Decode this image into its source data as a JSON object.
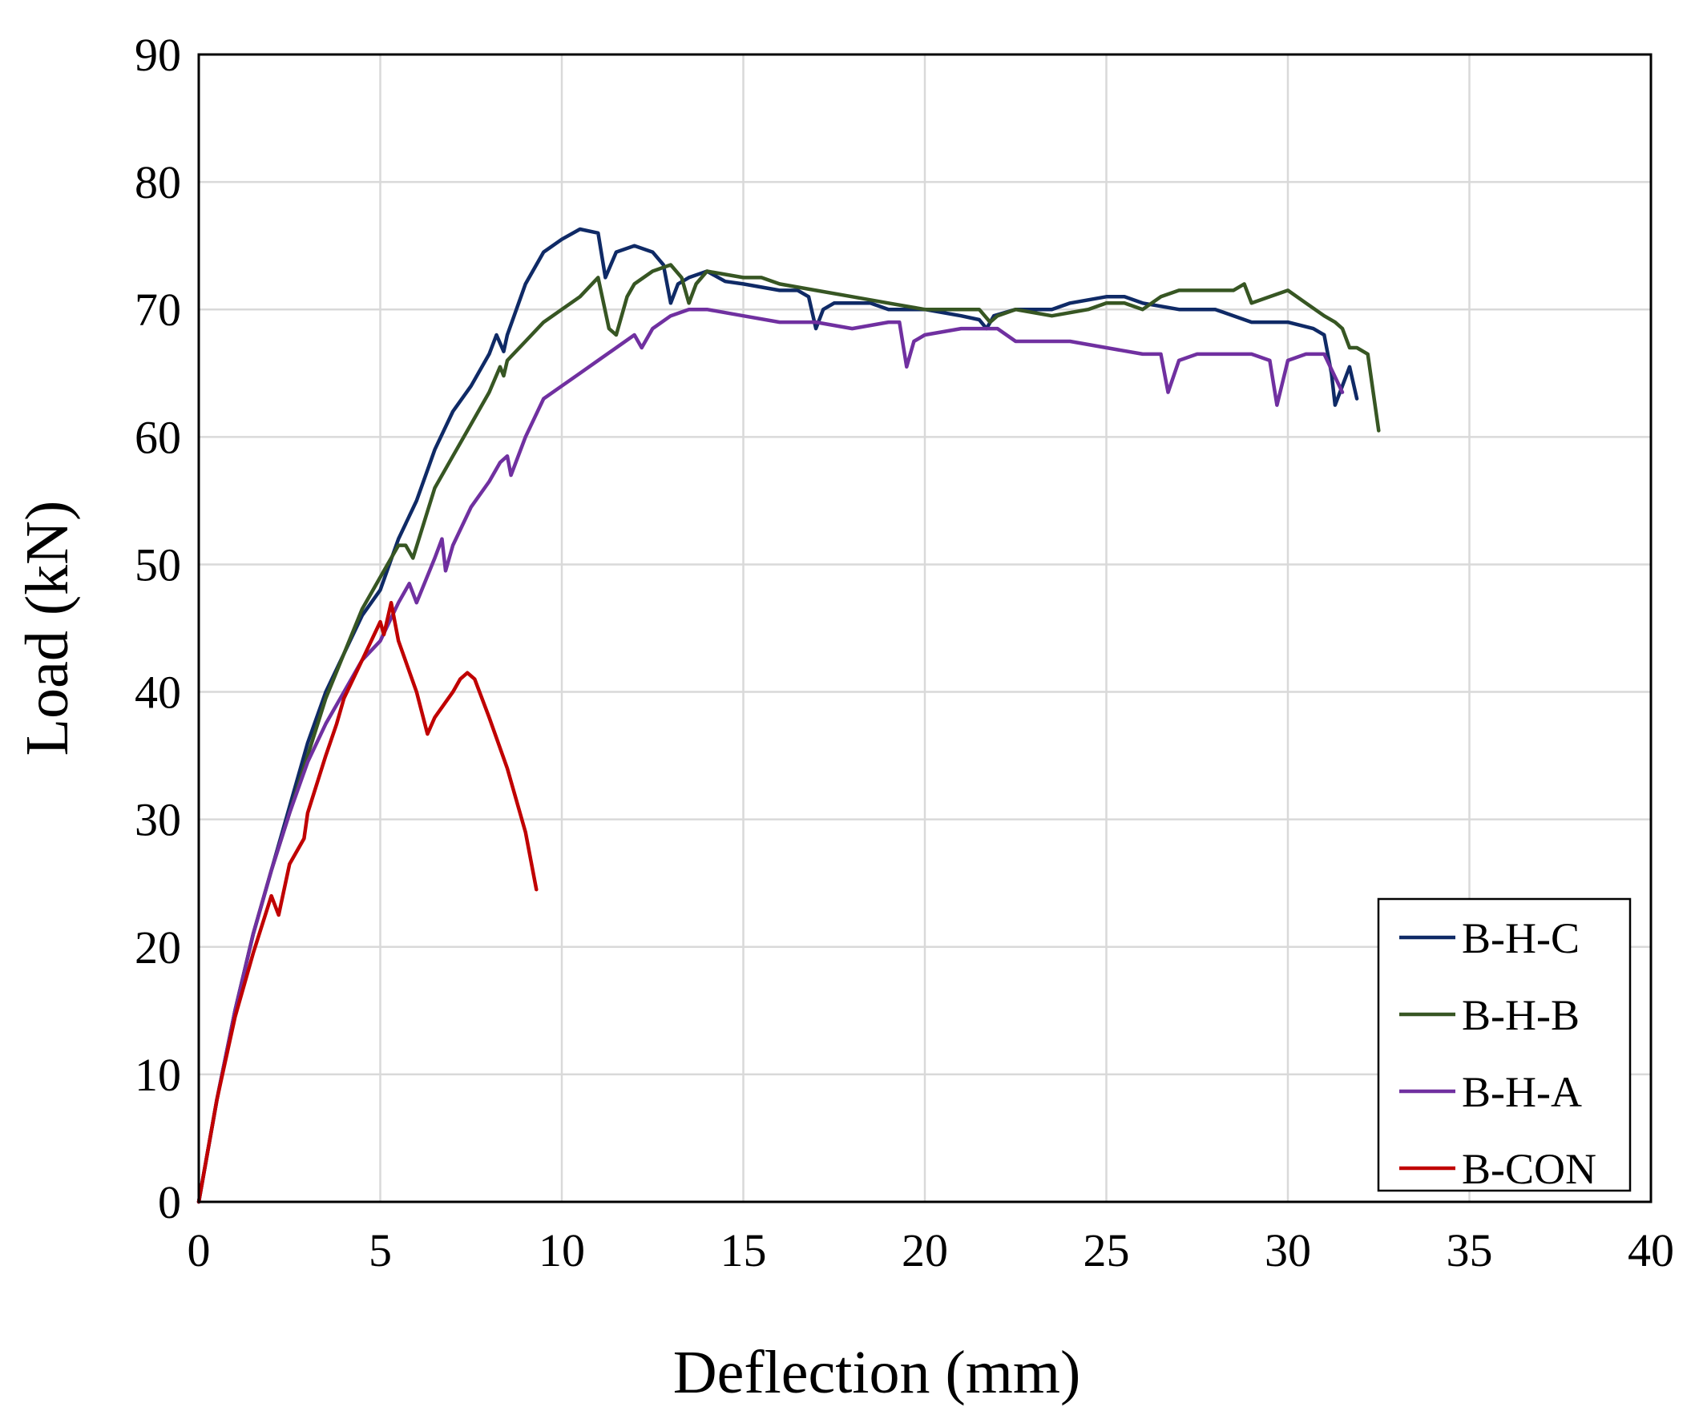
{
  "chart_data": {
    "type": "line",
    "title": "",
    "xlabel": "Deflection (mm)",
    "ylabel": "Load (kN)",
    "xlim": [
      0,
      40
    ],
    "ylim": [
      0,
      90
    ],
    "xticks": [
      0,
      5,
      10,
      15,
      20,
      25,
      30,
      35,
      40
    ],
    "yticks": [
      0,
      10,
      20,
      30,
      40,
      50,
      60,
      70,
      80,
      90
    ],
    "grid": true,
    "legend_position": "bottom-right",
    "series": [
      {
        "name": "B-H-C",
        "color": "#0f2a66",
        "x": [
          0,
          0.5,
          1,
          1.5,
          2,
          2.5,
          3,
          3.5,
          4,
          4.5,
          5,
          5.5,
          6,
          6.5,
          7,
          7.5,
          8,
          8.2,
          8.4,
          8.5,
          9,
          9.5,
          10,
          10.5,
          11,
          11.2,
          11.5,
          12,
          12.5,
          12.8,
          13,
          13.2,
          13.5,
          14,
          14.5,
          15,
          16,
          16.5,
          16.8,
          17,
          17.2,
          17.5,
          18,
          18.5,
          19,
          20,
          21,
          21.5,
          21.7,
          21.9,
          22.5,
          23.5,
          24,
          25,
          25.5,
          26,
          27,
          28,
          29,
          30,
          30.7,
          31,
          31.2,
          31.3,
          31.5,
          31.7,
          31.9
        ],
        "y": [
          0,
          8,
          15,
          21,
          26,
          31,
          36,
          40,
          43,
          46,
          48,
          52,
          55,
          59,
          62,
          64,
          66.5,
          68,
          66.7,
          68,
          72,
          74.5,
          75.5,
          76.3,
          76,
          72.5,
          74.5,
          75,
          74.5,
          73.5,
          70.5,
          72,
          72.5,
          73,
          72.2,
          72,
          71.5,
          71.5,
          71,
          68.5,
          70,
          70.5,
          70.5,
          70.5,
          70,
          70,
          69.5,
          69.2,
          68.5,
          69.5,
          70,
          70,
          70.5,
          71,
          71,
          70.5,
          70,
          70,
          69,
          69,
          68.5,
          68,
          65,
          62.5,
          64,
          65.5,
          63
        ]
      },
      {
        "name": "B-H-B",
        "color": "#375623",
        "x": [
          0,
          0.5,
          1,
          1.5,
          2,
          2.5,
          3,
          3.5,
          4,
          4.5,
          5,
          5.5,
          5.7,
          5.9,
          6.5,
          7,
          7.2,
          7.5,
          8,
          8.3,
          8.4,
          8.5,
          9,
          9.5,
          10,
          10.5,
          11,
          11.3,
          11.5,
          11.8,
          12,
          12.5,
          13,
          13.3,
          13.5,
          13.7,
          14,
          15,
          15.5,
          16,
          17,
          18,
          19,
          20,
          21,
          21.5,
          21.8,
          22,
          22.5,
          23.5,
          24.5,
          25,
          25.5,
          26,
          26.5,
          27,
          28,
          28.5,
          28.8,
          29,
          29.5,
          30,
          30.5,
          31,
          31.3,
          31.5,
          31.7,
          31.9,
          32.2,
          32.5
        ],
        "y": [
          0,
          8,
          15,
          21,
          26,
          30.5,
          35,
          39.5,
          43,
          46.5,
          49,
          51.5,
          51.5,
          50.5,
          56,
          58.5,
          59.5,
          61,
          63.5,
          65.5,
          64.8,
          66,
          67.5,
          69,
          70,
          71,
          72.5,
          68.5,
          68,
          71,
          72,
          73,
          73.5,
          72.5,
          70.5,
          72,
          73,
          72.5,
          72.5,
          72,
          71.5,
          71,
          70.5,
          70,
          70,
          70,
          69,
          69.5,
          70,
          69.5,
          70,
          70.5,
          70.5,
          70,
          71,
          71.5,
          71.5,
          71.5,
          72,
          70.5,
          71,
          71.5,
          70.5,
          69.5,
          69,
          68.5,
          67,
          67,
          66.5,
          60.5
        ]
      },
      {
        "name": "B-H-A",
        "color": "#7030a0",
        "x": [
          0,
          0.5,
          1,
          1.5,
          2,
          2.5,
          3,
          3.5,
          4,
          4.5,
          5,
          5.5,
          5.8,
          6,
          6.5,
          6.7,
          6.8,
          7,
          7.5,
          8,
          8.3,
          8.5,
          8.6,
          9,
          9.5,
          10,
          10.5,
          11,
          11.5,
          12,
          12.2,
          12.5,
          13,
          13.5,
          14,
          15,
          16,
          17,
          18,
          19,
          19.3,
          19.5,
          19.7,
          20,
          21,
          22,
          22.5,
          23,
          24,
          25,
          26,
          26.5,
          26.7,
          27,
          27.5,
          28,
          29,
          29.5,
          29.7,
          30,
          30.5,
          31,
          31.5
        ],
        "y": [
          0,
          8,
          15,
          21,
          26,
          30.5,
          34.5,
          37.5,
          40,
          42.5,
          44,
          47,
          48.5,
          47,
          50.5,
          52,
          49.5,
          51.5,
          54.5,
          56.5,
          58,
          58.5,
          57,
          60,
          63,
          64,
          65,
          66,
          67,
          68,
          67,
          68.5,
          69.5,
          70,
          70,
          69.5,
          69,
          69,
          68.5,
          69,
          69,
          65.5,
          67.5,
          68,
          68.5,
          68.5,
          67.5,
          67.5,
          67.5,
          67,
          66.5,
          66.5,
          63.5,
          66,
          66.5,
          66.5,
          66.5,
          66,
          62.5,
          66,
          66.5,
          66.5,
          63.5
        ]
      },
      {
        "name": "B-CON",
        "color": "#c00000",
        "x": [
          0,
          0.5,
          1,
          1.5,
          2,
          2.2,
          2.5,
          2.9,
          3,
          3.5,
          3.8,
          4,
          4.5,
          5,
          5.1,
          5.3,
          5.5,
          6,
          6.3,
          6.5,
          7,
          7.2,
          7.4,
          7.6,
          8,
          8.5,
          9,
          9.3
        ],
        "y": [
          0,
          8,
          14.5,
          19.5,
          24,
          22.5,
          26.5,
          28.5,
          30.5,
          35,
          37.5,
          39.5,
          42.5,
          45.5,
          44.5,
          47,
          44,
          40,
          36.7,
          38,
          40,
          41,
          41.5,
          41,
          38,
          34,
          29,
          24.5
        ]
      }
    ]
  }
}
